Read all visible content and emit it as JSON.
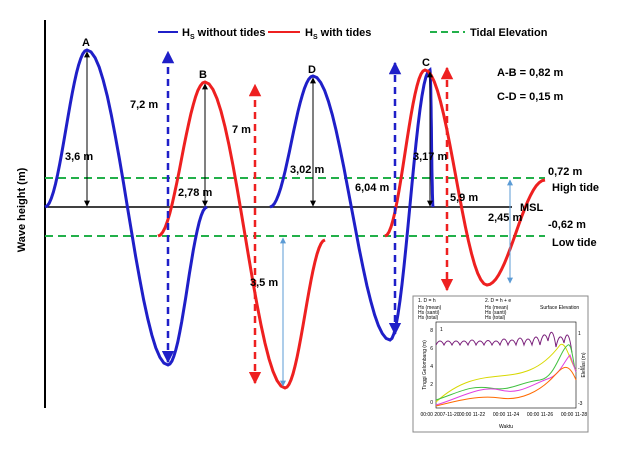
{
  "axis_label": "Wave height (m)",
  "legend": [
    {
      "symbol": "H",
      "subscript": "S",
      "text": " without tides"
    },
    {
      "symbol": "H",
      "subscript": "S",
      "text": " with tides"
    },
    {
      "text": "Tidal Elevation"
    }
  ],
  "points": [
    "A",
    "B",
    "C",
    "D"
  ],
  "measures": [
    "7,2 m",
    "7 m",
    "3,6 m",
    "2,78 m",
    "3,02 m",
    "3,17 m",
    "6,04 m",
    "5,9 m",
    "2,45 m",
    "3,5 m"
  ],
  "differences": [
    "A-B = 0,82 m",
    "C-D = 0,15 m"
  ],
  "tide": {
    "high_value": "0,72 m",
    "high_label": "High tide",
    "msl": "MSL",
    "low_value": "-0,62 m",
    "low_label": "Low tide"
  },
  "inset": {
    "case_1": "1. D = h",
    "case_2": "2. D = h + e",
    "legend": [
      "Hs (mean)",
      "Hs (santi)",
      "Hs (total)",
      "Surface Elevation"
    ],
    "panel": "1",
    "y_label": "Tinggi Gelombang (m)",
    "y2_label": "Elevasi (m)",
    "x_label": "Waktu",
    "x_ticks": [
      "00:00 2007-11-20",
      "00:00 11-22",
      "00:00 11-24",
      "00:00 11-26",
      "00:00 11-28"
    ],
    "y_ticks": [
      "8",
      "6",
      "4",
      "2",
      "0"
    ],
    "y2_ticks": [
      "1",
      "-1",
      "-3"
    ]
  }
}
